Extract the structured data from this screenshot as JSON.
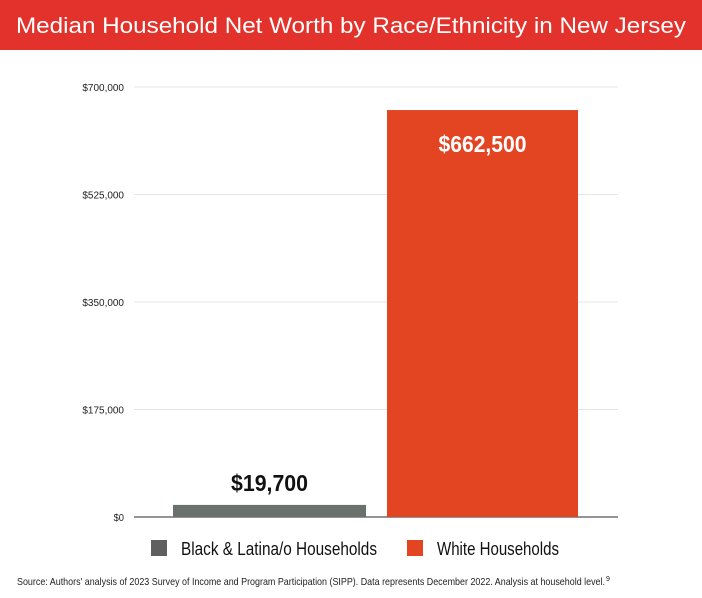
{
  "chart_data": {
    "type": "bar",
    "title": "Median Household Net Worth by Race/Ethnicity in New Jersey",
    "categories": [
      "Black & Latina/o Households",
      "White Households"
    ],
    "values": [
      19700,
      662500
    ],
    "data_labels": [
      "$19,700",
      "$662,500"
    ],
    "colors": [
      "#6b716d",
      "#e34522"
    ],
    "legend_colors": [
      "#5f5f5f",
      "#e34522"
    ],
    "ylim": [
      0,
      700000
    ],
    "yticks": [
      0,
      175000,
      350000,
      525000,
      700000
    ],
    "ytick_labels": [
      "$0",
      "$175,000",
      "$350,000",
      "$525,000",
      "$700,000"
    ],
    "legend": [
      "Black & Latina/o Households",
      "White Households"
    ],
    "legend_position": "bottom",
    "grid": true,
    "xlabel": "",
    "ylabel": "",
    "source": "Source: Authors' analysis of 2023 Survey of Income and Program Participation (SIPP). Data represents December 2022. Analysis at household level.",
    "source_footnote": "9"
  },
  "header_color": "#e2322b"
}
